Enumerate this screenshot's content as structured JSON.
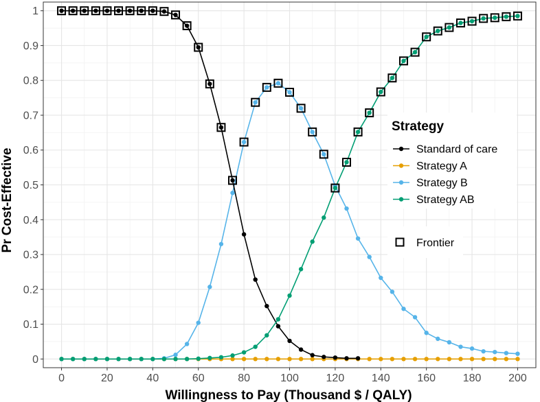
{
  "chart_data": {
    "type": "line",
    "title": "",
    "xlabel": "Willingness to Pay (Thousand $ / QALY)",
    "ylabel": "Pr Cost-Effective",
    "xlim": [
      -8,
      208
    ],
    "ylim": [
      -0.025,
      1.025
    ],
    "x_ticks": [
      0,
      20,
      40,
      60,
      80,
      100,
      120,
      140,
      160,
      180,
      200
    ],
    "x_tick_labels": [
      "0",
      "20",
      "40",
      "60",
      "80",
      "100",
      "120",
      "140",
      "160",
      "180",
      "200"
    ],
    "y_ticks": [
      0,
      0.1,
      0.2,
      0.3,
      0.4,
      0.5,
      0.6,
      0.7,
      0.8,
      0.9,
      1
    ],
    "y_tick_labels": [
      "0",
      "0.1",
      "0.2",
      "0.3",
      "0.4",
      "0.5",
      "0.6",
      "0.7",
      "0.8",
      "0.9",
      "1"
    ],
    "grid": true,
    "x": [
      0,
      5,
      10,
      15,
      20,
      25,
      30,
      35,
      40,
      45,
      50,
      55,
      60,
      65,
      70,
      75,
      80,
      85,
      90,
      95,
      100,
      105,
      110,
      115,
      120,
      125,
      130,
      135,
      140,
      145,
      150,
      155,
      160,
      165,
      170,
      175,
      180,
      185,
      190,
      195,
      200
    ],
    "series": [
      {
        "name": "Standard of care",
        "color": "#000000",
        "values": [
          1,
          1,
          1,
          1,
          1,
          1,
          1,
          1,
          1,
          0.998,
          0.988,
          0.957,
          0.895,
          0.79,
          0.665,
          0.513,
          0.358,
          0.228,
          0.152,
          0.094,
          0.052,
          0.027,
          0.011,
          0.006,
          0.004,
          0.002,
          0.002,
          null,
          null,
          null,
          null,
          null,
          null,
          null,
          null,
          null,
          null,
          null,
          null,
          null,
          null
        ]
      },
      {
        "name": "Strategy A",
        "color": "#E69F00",
        "values": [
          0,
          0,
          0,
          0,
          0,
          0,
          0,
          0,
          0,
          0,
          0,
          0,
          0,
          0,
          0,
          0,
          0,
          0,
          0,
          0,
          0,
          0,
          0,
          0,
          0,
          0,
          0,
          0,
          0,
          0,
          0,
          0,
          0,
          0,
          0,
          0,
          0,
          0,
          0,
          0,
          0
        ]
      },
      {
        "name": "Strategy B",
        "color": "#56B4E9",
        "values": [
          0,
          0,
          0,
          0,
          0,
          0,
          0,
          0,
          0,
          0.002,
          0.012,
          0.043,
          0.104,
          0.207,
          0.33,
          0.477,
          0.623,
          0.737,
          0.78,
          0.792,
          0.766,
          0.72,
          0.652,
          0.588,
          0.497,
          0.432,
          0.346,
          0.293,
          0.233,
          0.193,
          0.144,
          0.12,
          0.075,
          0.058,
          0.048,
          0.035,
          0.03,
          0.022,
          0.02,
          0.017,
          0.015
        ]
      },
      {
        "name": "Strategy AB",
        "color": "#009E73",
        "values": [
          0,
          0,
          0,
          0,
          0,
          0,
          0,
          0,
          0,
          0,
          0,
          0,
          0.001,
          0.003,
          0.005,
          0.01,
          0.019,
          0.035,
          0.068,
          0.114,
          0.182,
          0.258,
          0.337,
          0.406,
          0.491,
          0.565,
          0.652,
          0.707,
          0.767,
          0.807,
          0.856,
          0.881,
          0.925,
          0.942,
          0.952,
          0.965,
          0.97,
          0.978,
          0.98,
          0.983,
          0.985
        ]
      }
    ],
    "frontier": {
      "name": "Frontier",
      "points": [
        [
          0,
          1
        ],
        [
          5,
          1
        ],
        [
          10,
          1
        ],
        [
          15,
          1
        ],
        [
          20,
          1
        ],
        [
          25,
          1
        ],
        [
          30,
          1
        ],
        [
          35,
          1
        ],
        [
          40,
          1
        ],
        [
          45,
          0.998
        ],
        [
          50,
          0.988
        ],
        [
          55,
          0.957
        ],
        [
          60,
          0.895
        ],
        [
          65,
          0.79
        ],
        [
          70,
          0.665
        ],
        [
          75,
          0.513
        ],
        [
          80,
          0.623
        ],
        [
          85,
          0.737
        ],
        [
          90,
          0.78
        ],
        [
          95,
          0.792
        ],
        [
          100,
          0.766
        ],
        [
          105,
          0.72
        ],
        [
          110,
          0.652
        ],
        [
          115,
          0.588
        ],
        [
          120,
          0.491
        ],
        [
          125,
          0.565
        ],
        [
          130,
          0.652
        ],
        [
          135,
          0.707
        ],
        [
          140,
          0.767
        ],
        [
          145,
          0.807
        ],
        [
          150,
          0.856
        ],
        [
          155,
          0.881
        ],
        [
          160,
          0.925
        ],
        [
          165,
          0.942
        ],
        [
          170,
          0.952
        ],
        [
          175,
          0.965
        ],
        [
          180,
          0.97
        ],
        [
          185,
          0.978
        ],
        [
          190,
          0.98
        ],
        [
          195,
          0.983
        ],
        [
          200,
          0.985
        ]
      ]
    },
    "legend": {
      "title": "Strategy",
      "position": "right",
      "items": [
        "Standard of care",
        "Strategy A",
        "Strategy B",
        "Strategy AB"
      ],
      "frontier_label": "Frontier"
    }
  }
}
